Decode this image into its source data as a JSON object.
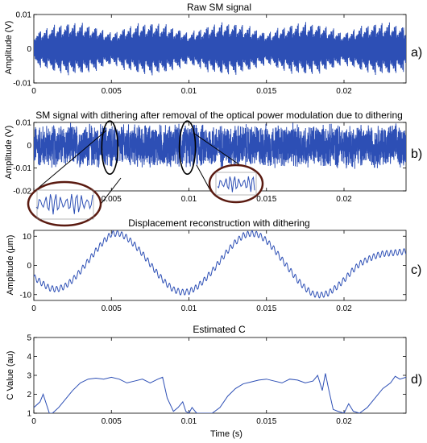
{
  "chart_data": [
    {
      "type": "line",
      "id": "a",
      "title": "Raw SM signal",
      "ylabel": "Amplitude (V)",
      "xlabel": "",
      "panel_label": "a)",
      "xlim": [
        0,
        0.024
      ],
      "ylim": [
        -0.01,
        0.01
      ],
      "xticks": [
        0,
        0.005,
        0.01,
        0.015,
        0.02
      ],
      "xtick_labels": [
        "0",
        "0.005",
        "0.01",
        "0.015",
        "0.02"
      ],
      "yticks": [
        -0.01,
        0,
        0.01
      ],
      "ytick_labels": [
        "-0.01",
        "0",
        "0.01"
      ],
      "series": [
        {
          "signal": "raw_sm",
          "color": "#2d4fb5",
          "envelope_amplitude": 0.008
        }
      ]
    },
    {
      "type": "line",
      "id": "b",
      "title": "SM signal with dithering after removal of the optical power modulation due to dithering",
      "ylabel": "Amplitude (V)",
      "xlabel": "",
      "panel_label": "b)",
      "xlim": [
        0,
        0.024
      ],
      "ylim": [
        -0.02,
        0.01
      ],
      "xticks": [
        0,
        0.005,
        0.01,
        0.015,
        0.02
      ],
      "xtick_labels": [
        "0",
        "0.005",
        "0.01",
        "0.015",
        "0.02"
      ],
      "yticks": [
        -0.02,
        -0.01,
        0,
        0.01
      ],
      "ytick_labels": [
        "-0.02",
        "-0.01",
        "0",
        "0.01"
      ],
      "annotations": [
        {
          "kind": "ellipse",
          "x": 0.0049,
          "y": -0.001
        },
        {
          "kind": "ellipse",
          "x": 0.0099,
          "y": -0.001
        }
      ],
      "series": [
        {
          "signal": "dithered_sm",
          "color": "#2d4fb5",
          "envelope_amplitude": 0.011
        }
      ]
    },
    {
      "type": "line",
      "id": "c",
      "title": "Displacement reconstruction with dithering",
      "ylabel": "Amplitude (μm)",
      "xlabel": "",
      "panel_label": "c)",
      "xlim": [
        0,
        0.024
      ],
      "ylim": [
        -12,
        12
      ],
      "xticks": [
        0,
        0.005,
        0.01,
        0.015,
        0.02
      ],
      "xtick_labels": [
        "0",
        "0.005",
        "0.01",
        "0.015",
        "0.02"
      ],
      "yticks": [
        -10,
        0,
        10
      ],
      "ytick_labels": [
        "-10",
        "0",
        "10"
      ],
      "series": [
        {
          "signal": "displacement",
          "color": "#2d4fb5",
          "x": [
            0,
            0.0005,
            0.001,
            0.0015,
            0.002,
            0.0025,
            0.003,
            0.0035,
            0.004,
            0.0045,
            0.005,
            0.0055,
            0.006,
            0.0065,
            0.007,
            0.0075,
            0.008,
            0.0085,
            0.009,
            0.0095,
            0.01,
            0.0105,
            0.011,
            0.0115,
            0.012,
            0.0125,
            0.013,
            0.0135,
            0.014,
            0.0145,
            0.015,
            0.0155,
            0.016,
            0.0165,
            0.017,
            0.0175,
            0.018,
            0.0185,
            0.019,
            0.0195,
            0.02,
            0.0205,
            0.021,
            0.0215,
            0.022,
            0.0225,
            0.023,
            0.0235,
            0.024
          ],
          "y": [
            -4,
            -6,
            -7.8,
            -8.2,
            -7.2,
            -5,
            -2,
            1.5,
            5,
            8.2,
            10.8,
            11,
            9.5,
            7,
            4,
            0.5,
            -3,
            -6,
            -8.3,
            -9.2,
            -9,
            -7.5,
            -5,
            -2,
            1.5,
            5,
            8,
            10.2,
            11,
            10.5,
            8.5,
            5.5,
            2,
            -1.5,
            -5,
            -7.8,
            -9.8,
            -10.2,
            -9.5,
            -7.5,
            -5,
            -2,
            0.5,
            2,
            3.2,
            4,
            4.2,
            4.5,
            4.8
          ],
          "ripple_amplitude": 1.0
        }
      ]
    },
    {
      "type": "line",
      "id": "d",
      "title": "Estimated C",
      "ylabel": "C Value (au)",
      "xlabel": "Time (s)",
      "panel_label": "d)",
      "xlim": [
        0,
        0.024
      ],
      "ylim": [
        1,
        5
      ],
      "xticks": [
        0,
        0.005,
        0.01,
        0.015,
        0.02
      ],
      "xtick_labels": [
        "0",
        "0.005",
        "0.01",
        "0.015",
        "0.02"
      ],
      "yticks": [
        1,
        2,
        3,
        4,
        5
      ],
      "ytick_labels": [
        "1",
        "2",
        "3",
        "4",
        "5"
      ],
      "series": [
        {
          "signal": "estimated_c",
          "color": "#2d4fb5",
          "x": [
            0,
            0.0004,
            0.0006,
            0.0008,
            0.001,
            0.0012,
            0.0016,
            0.002,
            0.0025,
            0.003,
            0.0035,
            0.004,
            0.0045,
            0.005,
            0.0055,
            0.006,
            0.0065,
            0.007,
            0.0075,
            0.008,
            0.0083,
            0.0086,
            0.009,
            0.0093,
            0.0096,
            0.0098,
            0.01,
            0.0102,
            0.0105,
            0.011,
            0.0115,
            0.012,
            0.0125,
            0.013,
            0.0135,
            0.014,
            0.0145,
            0.015,
            0.0155,
            0.016,
            0.0165,
            0.017,
            0.0175,
            0.018,
            0.0183,
            0.0186,
            0.0188,
            0.019,
            0.0193,
            0.0196,
            0.02,
            0.0203,
            0.0206,
            0.021,
            0.0215,
            0.022,
            0.0225,
            0.023,
            0.0233,
            0.0236,
            0.024
          ],
          "y": [
            1.3,
            1.6,
            2.0,
            1.5,
            1.0,
            1.0,
            1.3,
            1.7,
            2.2,
            2.6,
            2.8,
            2.85,
            2.8,
            2.9,
            2.8,
            2.6,
            2.7,
            2.8,
            2.6,
            2.8,
            2.9,
            1.8,
            1.1,
            1.3,
            1.6,
            1.1,
            1.0,
            1.3,
            1.0,
            1.0,
            1.0,
            1.3,
            1.9,
            2.3,
            2.55,
            2.65,
            2.75,
            2.8,
            2.7,
            2.6,
            2.8,
            2.75,
            2.6,
            2.7,
            3.0,
            2.2,
            3.1,
            2.3,
            1.2,
            1.1,
            1.0,
            1.5,
            1.1,
            1.0,
            1.3,
            1.8,
            2.3,
            2.6,
            2.95,
            2.8,
            2.9
          ]
        }
      ]
    }
  ]
}
